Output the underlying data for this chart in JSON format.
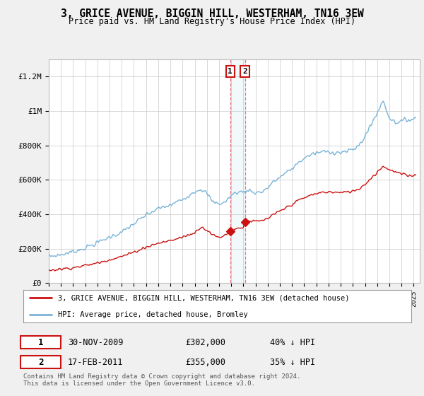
{
  "title": "3, GRICE AVENUE, BIGGIN HILL, WESTERHAM, TN16 3EW",
  "subtitle": "Price paid vs. HM Land Registry's House Price Index (HPI)",
  "xlim": [
    1995.0,
    2025.5
  ],
  "ylim": [
    0,
    1300000
  ],
  "yticks": [
    0,
    200000,
    400000,
    600000,
    800000,
    1000000,
    1200000
  ],
  "ytick_labels": [
    "£0",
    "£200K",
    "£400K",
    "£600K",
    "£800K",
    "£1M",
    "£1.2M"
  ],
  "hpi_color": "#7ab4d8",
  "price_color": "#cc1111",
  "transaction1_date": 2009.917,
  "transaction1_price": 302000,
  "transaction2_date": 2011.125,
  "transaction2_price": 355000,
  "legend_line1": "3, GRICE AVENUE, BIGGIN HILL, WESTERHAM, TN16 3EW (detached house)",
  "legend_line2": "HPI: Average price, detached house, Bromley",
  "table_row1": [
    "1",
    "30-NOV-2009",
    "£302,000",
    "40% ↓ HPI"
  ],
  "table_row2": [
    "2",
    "17-FEB-2011",
    "£355,000",
    "35% ↓ HPI"
  ],
  "footnote": "Contains HM Land Registry data © Crown copyright and database right 2024.\nThis data is licensed under the Open Government Licence v3.0.",
  "bg_color": "#f0f0f0",
  "plot_bg_color": "#ffffff",
  "box1_color": "#cc1111",
  "box2_color": "#cc1111"
}
